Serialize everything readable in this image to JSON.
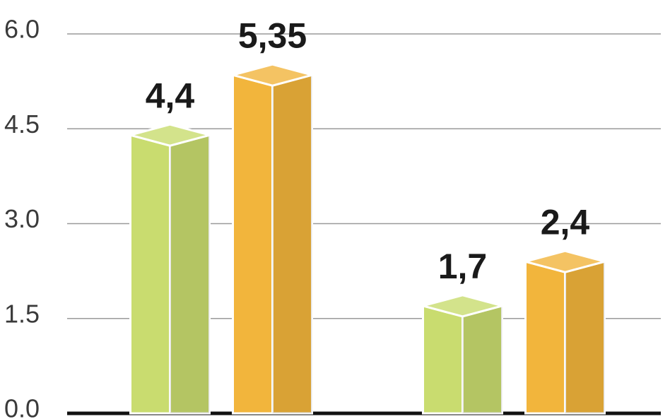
{
  "chart_data": {
    "type": "bar",
    "categories": [
      null,
      null
    ],
    "series": [
      {
        "color": "#c9dc6f",
        "values": [
          4.4,
          1.7
        ],
        "value_labels": [
          "4,4",
          "1,7"
        ]
      },
      {
        "color": "#f2b53c",
        "values": [
          5.35,
          2.4
        ],
        "value_labels": [
          "5,35",
          "2,4"
        ]
      }
    ],
    "ylim": [
      0,
      6
    ],
    "yticks": [
      {
        "value": 0,
        "label": "0.0"
      },
      1.5,
      {
        "value": 3,
        "label": "3.0"
      },
      4.5,
      {
        "value": 6,
        "label": "6.0"
      }
    ],
    "grid": true
  }
}
